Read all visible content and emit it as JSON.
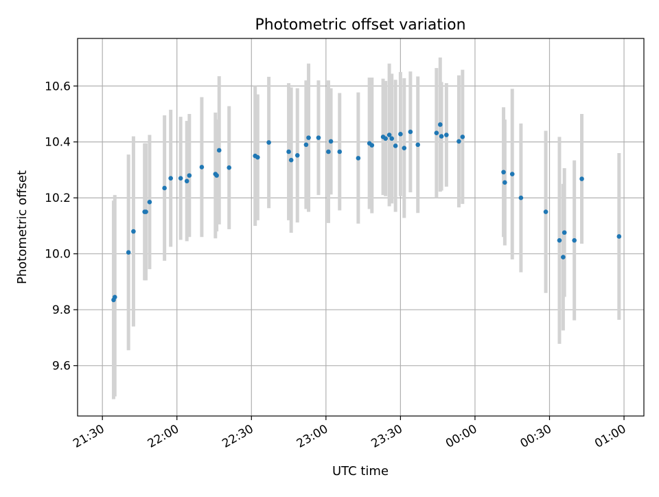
{
  "chart_data": {
    "type": "scatter",
    "title": "Photometric offset variation",
    "xlabel": "UTC time",
    "ylabel": "Photometric offset",
    "x_unit": "UTC clock time (HH:MM), spanning midnight",
    "xlim": [
      "21:20",
      "01:08"
    ],
    "ylim": [
      9.42,
      10.77
    ],
    "xticks": [
      "21:30",
      "22:00",
      "22:30",
      "23:00",
      "23:30",
      "00:00",
      "00:30",
      "01:00"
    ],
    "yticks": [
      9.6,
      9.8,
      10.0,
      10.2,
      10.4,
      10.6
    ],
    "grid": true,
    "legend": "none",
    "colors": {
      "point": "#1f77b4",
      "errorbar": "#d3d3d3",
      "grid": "#b0b0b0"
    },
    "series": [
      {
        "points": [
          {
            "t": "21:34:30",
            "y": 9.835,
            "lo": 9.48,
            "hi": 10.19
          },
          {
            "t": "21:35:00",
            "y": 9.845,
            "lo": 9.49,
            "hi": 10.21
          },
          {
            "t": "21:40:30",
            "y": 10.005,
            "lo": 9.655,
            "hi": 10.355
          },
          {
            "t": "21:42:30",
            "y": 10.08,
            "lo": 9.74,
            "hi": 10.42
          },
          {
            "t": "21:47:00",
            "y": 10.15,
            "lo": 9.905,
            "hi": 10.395
          },
          {
            "t": "21:47:30",
            "y": 10.15,
            "lo": 9.905,
            "hi": 10.395
          },
          {
            "t": "21:49:00",
            "y": 10.185,
            "lo": 9.945,
            "hi": 10.425
          },
          {
            "t": "21:55:00",
            "y": 10.235,
            "lo": 9.975,
            "hi": 10.495
          },
          {
            "t": "21:57:30",
            "y": 10.27,
            "lo": 10.025,
            "hi": 10.515
          },
          {
            "t": "22:01:30",
            "y": 10.27,
            "lo": 10.05,
            "hi": 10.49
          },
          {
            "t": "22:04:00",
            "y": 10.26,
            "lo": 10.045,
            "hi": 10.475
          },
          {
            "t": "22:05:00",
            "y": 10.28,
            "lo": 10.06,
            "hi": 10.5
          },
          {
            "t": "22:10:00",
            "y": 10.31,
            "lo": 10.06,
            "hi": 10.56
          },
          {
            "t": "22:15:30",
            "y": 10.285,
            "lo": 10.055,
            "hi": 10.505
          },
          {
            "t": "22:16:00",
            "y": 10.28,
            "lo": 10.08,
            "hi": 10.48
          },
          {
            "t": "22:17:00",
            "y": 10.37,
            "lo": 10.105,
            "hi": 10.635
          },
          {
            "t": "22:21:00",
            "y": 10.308,
            "lo": 10.088,
            "hi": 10.528
          },
          {
            "t": "22:31:30",
            "y": 10.35,
            "lo": 10.1,
            "hi": 10.6
          },
          {
            "t": "22:32:30",
            "y": 10.345,
            "lo": 10.12,
            "hi": 10.57
          },
          {
            "t": "22:37:00",
            "y": 10.398,
            "lo": 10.163,
            "hi": 10.633
          },
          {
            "t": "22:45:00",
            "y": 10.365,
            "lo": 10.12,
            "hi": 10.61
          },
          {
            "t": "22:46:00",
            "y": 10.335,
            "lo": 10.075,
            "hi": 10.595
          },
          {
            "t": "22:48:30",
            "y": 10.352,
            "lo": 10.112,
            "hi": 10.592
          },
          {
            "t": "22:52:00",
            "y": 10.39,
            "lo": 10.16,
            "hi": 10.62
          },
          {
            "t": "22:53:00",
            "y": 10.415,
            "lo": 10.15,
            "hi": 10.68
          },
          {
            "t": "22:57:00",
            "y": 10.415,
            "lo": 10.21,
            "hi": 10.62
          },
          {
            "t": "23:01:00",
            "y": 10.365,
            "lo": 10.11,
            "hi": 10.62
          },
          {
            "t": "23:02:00",
            "y": 10.402,
            "lo": 10.212,
            "hi": 10.592
          },
          {
            "t": "23:05:30",
            "y": 10.365,
            "lo": 10.155,
            "hi": 10.575
          },
          {
            "t": "23:13:00",
            "y": 10.342,
            "lo": 10.108,
            "hi": 10.577
          },
          {
            "t": "23:17:30",
            "y": 10.395,
            "lo": 10.16,
            "hi": 10.63
          },
          {
            "t": "23:18:30",
            "y": 10.388,
            "lo": 10.145,
            "hi": 10.63
          },
          {
            "t": "23:23:00",
            "y": 10.418,
            "lo": 10.21,
            "hi": 10.626
          },
          {
            "t": "23:24:00",
            "y": 10.412,
            "lo": 10.206,
            "hi": 10.618
          },
          {
            "t": "23:25:30",
            "y": 10.425,
            "lo": 10.17,
            "hi": 10.68
          },
          {
            "t": "23:26:30",
            "y": 10.412,
            "lo": 10.18,
            "hi": 10.644
          },
          {
            "t": "23:28:00",
            "y": 10.386,
            "lo": 10.15,
            "hi": 10.622
          },
          {
            "t": "23:30:00",
            "y": 10.428,
            "lo": 10.206,
            "hi": 10.65
          },
          {
            "t": "23:31:30",
            "y": 10.378,
            "lo": 10.128,
            "hi": 10.628
          },
          {
            "t": "23:34:00",
            "y": 10.436,
            "lo": 10.22,
            "hi": 10.652
          },
          {
            "t": "23:37:00",
            "y": 10.39,
            "lo": 10.146,
            "hi": 10.634
          },
          {
            "t": "23:44:30",
            "y": 10.432,
            "lo": 10.2,
            "hi": 10.664
          },
          {
            "t": "23:46:00",
            "y": 10.462,
            "lo": 10.222,
            "hi": 10.702
          },
          {
            "t": "23:46:30",
            "y": 10.42,
            "lo": 10.226,
            "hi": 10.614
          },
          {
            "t": "23:48:30",
            "y": 10.425,
            "lo": 10.24,
            "hi": 10.61
          },
          {
            "t": "23:53:30",
            "y": 10.402,
            "lo": 10.166,
            "hi": 10.638
          },
          {
            "t": "23:55:00",
            "y": 10.418,
            "lo": 10.178,
            "hi": 10.658
          },
          {
            "t": "00:11:30",
            "y": 10.292,
            "lo": 10.06,
            "hi": 10.524
          },
          {
            "t": "00:12:00",
            "y": 10.255,
            "lo": 10.03,
            "hi": 10.48
          },
          {
            "t": "00:15:00",
            "y": 10.285,
            "lo": 9.98,
            "hi": 10.59
          },
          {
            "t": "00:18:30",
            "y": 10.2,
            "lo": 9.934,
            "hi": 10.466
          },
          {
            "t": "00:28:30",
            "y": 10.15,
            "lo": 9.86,
            "hi": 10.44
          },
          {
            "t": "00:34:00",
            "y": 10.048,
            "lo": 9.678,
            "hi": 10.418
          },
          {
            "t": "00:35:30",
            "y": 9.988,
            "lo": 9.726,
            "hi": 10.25
          },
          {
            "t": "00:36:00",
            "y": 10.076,
            "lo": 9.846,
            "hi": 10.306
          },
          {
            "t": "00:40:00",
            "y": 10.048,
            "lo": 9.762,
            "hi": 10.334
          },
          {
            "t": "00:43:00",
            "y": 10.268,
            "lo": 10.036,
            "hi": 10.5
          },
          {
            "t": "00:58:00",
            "y": 10.062,
            "lo": 9.764,
            "hi": 10.36
          }
        ]
      }
    ]
  }
}
